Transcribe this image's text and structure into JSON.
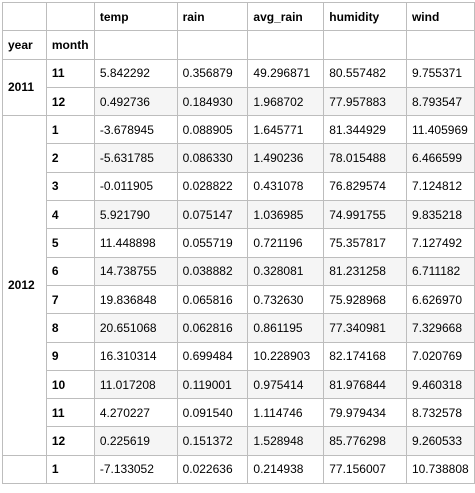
{
  "table": {
    "columns": [
      "temp",
      "rain",
      "avg_rain",
      "humidity",
      "wind"
    ],
    "index_names": [
      "year",
      "month"
    ],
    "groups": [
      {
        "year": "2011",
        "rows": [
          {
            "month": "11",
            "values": [
              "5.842292",
              "0.356879",
              "49.296871",
              "80.557482",
              "9.755371"
            ]
          },
          {
            "month": "12",
            "values": [
              "0.492736",
              "0.184930",
              "1.968702",
              "77.957883",
              "8.793547"
            ]
          }
        ]
      },
      {
        "year": "2012",
        "rows": [
          {
            "month": "1",
            "values": [
              "-3.678945",
              "0.088905",
              "1.645771",
              "81.344929",
              "11.405969"
            ]
          },
          {
            "month": "2",
            "values": [
              "-5.631785",
              "0.086330",
              "1.490236",
              "78.015488",
              "6.466599"
            ]
          },
          {
            "month": "3",
            "values": [
              "-0.011905",
              "0.028822",
              "0.431078",
              "76.829574",
              "7.124812"
            ]
          },
          {
            "month": "4",
            "values": [
              "5.921790",
              "0.075147",
              "1.036985",
              "74.991755",
              "9.835218"
            ]
          },
          {
            "month": "5",
            "values": [
              "11.448898",
              "0.055719",
              "0.721196",
              "75.357817",
              "7.127492"
            ]
          },
          {
            "month": "6",
            "values": [
              "14.738755",
              "0.038882",
              "0.328081",
              "81.231258",
              "6.711182"
            ]
          },
          {
            "month": "7",
            "values": [
              "19.836848",
              "0.065816",
              "0.732630",
              "75.928968",
              "6.626970"
            ]
          },
          {
            "month": "8",
            "values": [
              "20.651068",
              "0.062816",
              "0.861195",
              "77.340981",
              "7.329668"
            ]
          },
          {
            "month": "9",
            "values": [
              "16.310314",
              "0.699484",
              "10.228903",
              "82.174168",
              "7.020769"
            ]
          },
          {
            "month": "10",
            "values": [
              "11.017208",
              "0.119001",
              "0.975414",
              "81.976844",
              "9.460318"
            ]
          },
          {
            "month": "11",
            "values": [
              "4.270227",
              "0.091540",
              "1.114746",
              "79.979434",
              "8.732578"
            ]
          },
          {
            "month": "12",
            "values": [
              "0.225619",
              "0.151372",
              "1.528948",
              "85.776298",
              "9.260533"
            ]
          }
        ]
      },
      {
        "year": "",
        "rows": [
          {
            "month": "1",
            "values": [
              "-7.133052",
              "0.022636",
              "0.214938",
              "77.156007",
              "10.738808"
            ]
          }
        ]
      }
    ]
  }
}
